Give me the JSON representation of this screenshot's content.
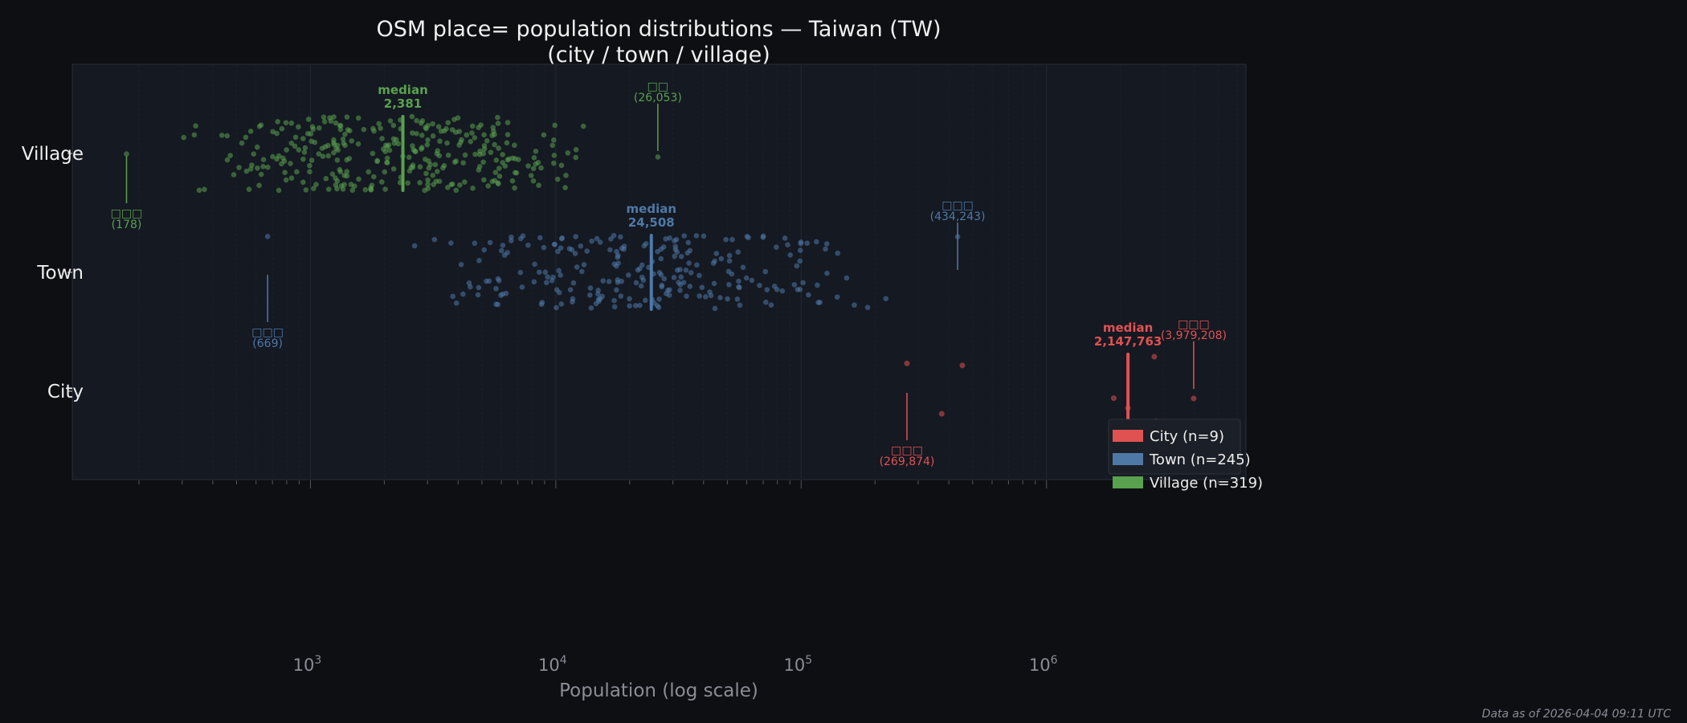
{
  "chart_data": {
    "type": "scatter",
    "title_line1": "OSM place= population distributions — Taiwan (TW)",
    "title_line2": "(city / town / village)",
    "xlabel": "Population (log scale)",
    "xscale": "log",
    "xlim": [
      107,
      6500000
    ],
    "xticks": [
      {
        "base": "10",
        "exp": "3",
        "value": 1000
      },
      {
        "base": "10",
        "exp": "4",
        "value": 10000
      },
      {
        "base": "10",
        "exp": "5",
        "value": 100000
      },
      {
        "base": "10",
        "exp": "6",
        "value": 1000000
      }
    ],
    "grid": "vertical minor+major, faint",
    "legend_placement": "lower-right",
    "footnote": "Data as of 2026-04-04 09:11 UTC",
    "colors": {
      "city": "#e05252",
      "town": "#4e79a7",
      "village": "#59a14f"
    },
    "categories": [
      {
        "key": "village",
        "label": "Village",
        "legend": "Village  (n=319)",
        "n": 319,
        "median": 2381,
        "median_label": "median",
        "median_value": "2,381",
        "min": {
          "name": "□□□",
          "value": 178,
          "value_label": "(178)"
        },
        "max": {
          "name": "□□",
          "value": 26053,
          "value_label": "(26,053)"
        },
        "bulk_range": [
          200,
          13000
        ]
      },
      {
        "key": "town",
        "label": "Town",
        "legend": "Town  (n=245)",
        "n": 245,
        "median": 24508,
        "median_label": "median",
        "median_value": "24,508",
        "min": {
          "name": "□□□",
          "value": 669,
          "value_label": "(669)"
        },
        "max": {
          "name": "□□□",
          "value": 434243,
          "value_label": "(434,243)"
        },
        "bulk_range": [
          2400,
          240000
        ]
      },
      {
        "key": "city",
        "label": "City",
        "legend": "City  (n=9)",
        "n": 9,
        "median": 2147763,
        "median_label": "median",
        "median_value": "2,147,763",
        "min": {
          "name": "□□□",
          "value": 269874,
          "value_label": "(269,874)"
        },
        "max": {
          "name": "□□□",
          "value": 3979208,
          "value_label": "(3,979,208)"
        },
        "values": [
          269874,
          374000,
          454000,
          1880000,
          2147763,
          2690000,
          2750000,
          2800000,
          3979208
        ]
      }
    ]
  }
}
